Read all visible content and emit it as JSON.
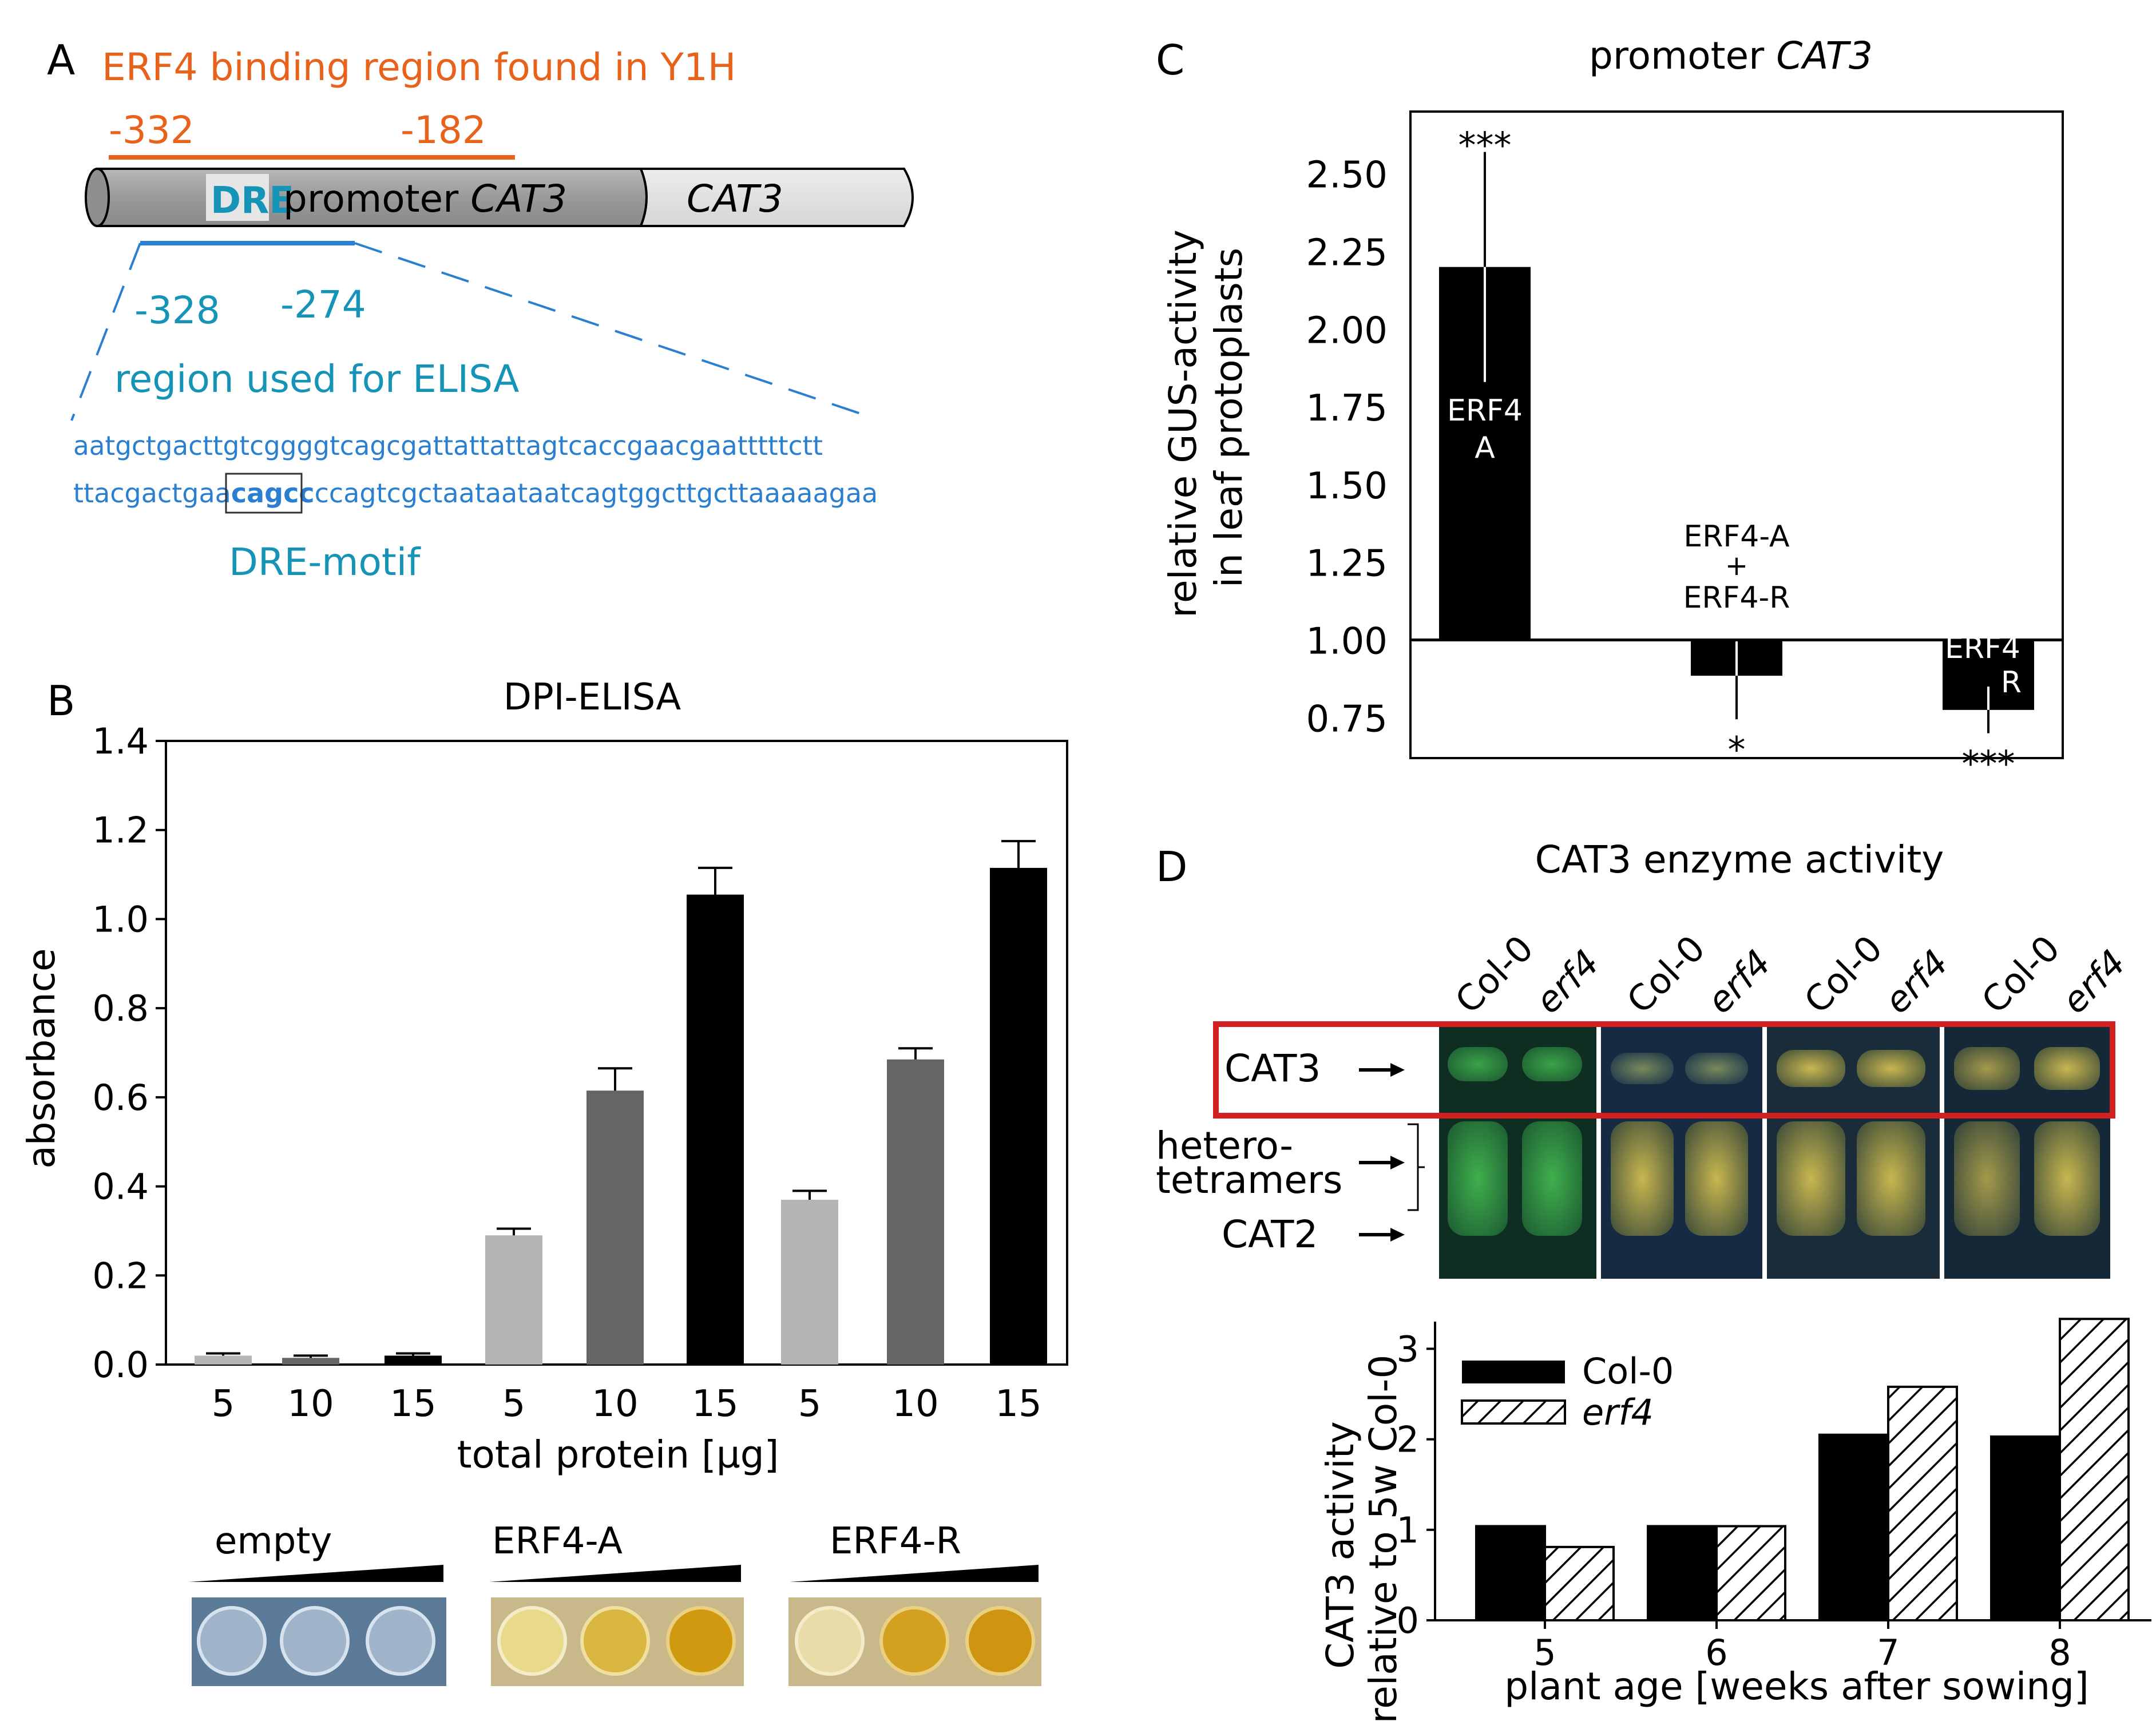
{
  "panelA": {
    "letter": "A",
    "binding_title": "ERF4 binding region found in Y1H",
    "y1h_start": "-332",
    "y1h_end": "-182",
    "dre_box": "DRE",
    "promoter_label": "promoter ",
    "promoter_gene": "CAT3",
    "gene_label": "CAT3",
    "elisa_start": "-328",
    "elisa_end": "-274",
    "elisa_region": "region used for ELISA",
    "seq_top": "aatgctgacttgtcggggtcagcgattattattagtcaccgaacgaatttttctt",
    "seq_bottom_pre": "ttacgactgaa",
    "seq_bottom_motif": "cagcc",
    "seq_bottom_post": "ccagtcgctaataataatcagtggcttgcttaaaaagaa",
    "motif_label": "DRE-motif",
    "colors": {
      "orange": "#e8621c",
      "teal": "#1594b8",
      "blue": "#2a7fd0"
    }
  },
  "panelB": {
    "letter": "B",
    "well_labels": [
      "empty",
      "ERF4-A",
      "ERF4-R"
    ]
  },
  "panelC": {
    "letter": "C",
    "title_prefix": "promoter ",
    "title_gene": "CAT3"
  },
  "panelD": {
    "letter": "D",
    "gel_title": "CAT3 enzyme activity",
    "lane_labels": [
      "Col-0",
      "erf4",
      "Col-0",
      "erf4",
      "Col-0",
      "erf4",
      "Col-0",
      "erf4"
    ],
    "band_labels": [
      "CAT3",
      "hetero-",
      "tetramers",
      "CAT2"
    ],
    "highlight_color": "#d21f1f"
  },
  "chart_data": [
    {
      "id": "B",
      "type": "bar",
      "title": "DPI-ELISA",
      "xlabel": "total protein [µg]",
      "ylabel": "absorbance",
      "ylim": [
        0,
        1.4
      ],
      "yticks": [
        0.0,
        0.2,
        0.4,
        0.6,
        0.8,
        1.0,
        1.2,
        1.4
      ],
      "ytick_labels": [
        "0.0",
        "0.2",
        "0.4",
        "0.6",
        "0.8",
        "1.0",
        "1.2",
        "1.4"
      ],
      "categories": [
        "5",
        "10",
        "15",
        "5",
        "10",
        "15",
        "5",
        "10",
        "15"
      ],
      "groups": [
        "empty",
        "ERF4-A",
        "ERF4-R"
      ],
      "values": [
        0.02,
        0.015,
        0.02,
        0.29,
        0.615,
        1.055,
        0.37,
        0.685,
        1.115
      ],
      "errors": [
        0.005,
        0.005,
        0.005,
        0.015,
        0.05,
        0.06,
        0.02,
        0.025,
        0.06
      ],
      "colors": [
        "#b4b4b4",
        "#656565",
        "#000000",
        "#b4b4b4",
        "#656565",
        "#000000",
        "#b4b4b4",
        "#656565",
        "#000000"
      ]
    },
    {
      "id": "C",
      "type": "bar",
      "title": "promoter CAT3",
      "ylabel_lines": [
        "relative GUS-activity",
        "in leaf protoplasts"
      ],
      "ylim": [
        0.62,
        2.7
      ],
      "baseline": 1.0,
      "yticks": [
        0.75,
        1.0,
        1.25,
        1.5,
        1.75,
        2.0,
        2.25,
        2.5
      ],
      "ytick_labels": [
        "0.75",
        "1.00",
        "1.25",
        "1.50",
        "1.75",
        "2.00",
        "2.25",
        "2.50"
      ],
      "categories": [
        "ERF4-A",
        "ERF4-A + ERF4-R",
        "ERF4-R"
      ],
      "bar_labels": [
        [
          "ERF4",
          "A"
        ],
        [
          "ERF4-A",
          "+",
          "ERF4-R"
        ],
        [
          "ERF4",
          "R"
        ]
      ],
      "values": [
        2.2,
        0.885,
        0.775
      ],
      "errors": [
        0.37,
        0.14,
        0.075
      ],
      "significance": [
        "***",
        "*",
        "***"
      ]
    },
    {
      "id": "D",
      "type": "bar",
      "ylabel_lines": [
        "CAT3 activity",
        "relative to 5w Col-0"
      ],
      "xlabel": "plant age [weeks after sowing]",
      "ylim": [
        0,
        3.3
      ],
      "yticks": [
        0,
        1,
        2,
        3
      ],
      "ytick_labels": [
        "0",
        "1",
        "2",
        "3"
      ],
      "categories": [
        "5",
        "6",
        "7",
        "8"
      ],
      "series": [
        {
          "name": "Col-0",
          "values": [
            1.04,
            1.04,
            2.05,
            2.03
          ],
          "fill": "solid"
        },
        {
          "name": "erf4",
          "values": [
            0.81,
            1.04,
            2.58,
            3.33
          ],
          "fill": "hatch"
        }
      ]
    }
  ]
}
